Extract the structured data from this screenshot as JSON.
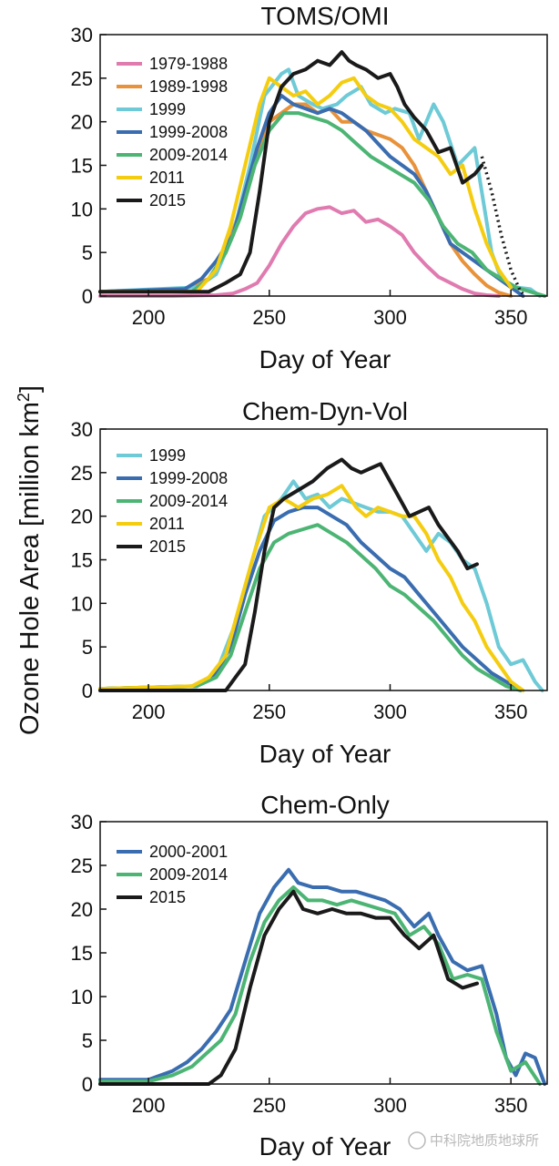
{
  "ylabel": "Ozone Hole Area [million km",
  "ylabel_sup": "2",
  "ylabel_end": "]",
  "watermark": "中科院地质地球所",
  "chart_data": [
    {
      "type": "line",
      "title": "TOMS/OMI",
      "xlabel": "Day of Year",
      "xlim": [
        180,
        365
      ],
      "ylim": [
        0,
        30
      ],
      "xticks": [
        200,
        250,
        300,
        350
      ],
      "yticks": [
        0,
        5,
        10,
        15,
        20,
        25,
        30
      ],
      "series": [
        {
          "name": "1979-1988",
          "color": "#e07bb0",
          "x": [
            180,
            210,
            228,
            235,
            240,
            245,
            250,
            255,
            260,
            265,
            270,
            275,
            280,
            285,
            290,
            295,
            300,
            305,
            310,
            315,
            320,
            325,
            330,
            335,
            340,
            345
          ],
          "y": [
            0,
            0,
            0.1,
            0.3,
            0.8,
            1.5,
            3.5,
            6,
            8,
            9.5,
            10,
            10.2,
            9.5,
            9.8,
            8.5,
            8.8,
            8,
            7,
            5,
            3.5,
            2.2,
            1.5,
            0.8,
            0.3,
            0.1,
            0
          ]
        },
        {
          "name": "1989-1998",
          "color": "#e8923a",
          "x": [
            180,
            215,
            225,
            232,
            238,
            245,
            250,
            255,
            260,
            265,
            270,
            275,
            280,
            285,
            290,
            295,
            300,
            305,
            310,
            315,
            320,
            325,
            330,
            335,
            340,
            345,
            350
          ],
          "y": [
            0.5,
            0.8,
            2,
            5,
            10,
            16,
            20,
            21,
            22,
            22,
            21,
            21.5,
            20,
            20,
            19,
            18.5,
            18,
            17,
            15,
            12,
            9,
            6,
            4,
            2.5,
            1.2,
            0.4,
            0
          ]
        },
        {
          "name": "1999",
          "color": "#6dcad6",
          "x": [
            180,
            220,
            228,
            235,
            242,
            248,
            255,
            258,
            262,
            268,
            272,
            278,
            282,
            288,
            292,
            298,
            302,
            308,
            312,
            318,
            322,
            328,
            335,
            342,
            346,
            352,
            358,
            362
          ],
          "y": [
            0.5,
            1,
            2.5,
            7,
            15,
            23,
            25.5,
            26,
            23,
            22,
            21.5,
            22,
            23,
            24,
            22,
            21,
            21.5,
            21,
            18,
            22,
            20,
            15,
            17,
            5,
            2,
            1,
            0.8,
            0
          ]
        },
        {
          "name": "1999-2008",
          "color": "#3a6db0",
          "x": [
            180,
            215,
            222,
            228,
            235,
            240,
            245,
            250,
            255,
            260,
            265,
            270,
            275,
            280,
            285,
            290,
            295,
            300,
            305,
            310,
            315,
            320,
            325,
            330,
            335,
            340,
            345,
            350,
            355
          ],
          "y": [
            0.5,
            0.8,
            2,
            4,
            7,
            12,
            17,
            21,
            23,
            22,
            21.5,
            21,
            21.5,
            21,
            20,
            19,
            17.5,
            16,
            15,
            14,
            12,
            9,
            6,
            5,
            4,
            3,
            2,
            1,
            0
          ]
        },
        {
          "name": "2009-2014",
          "color": "#4cb574",
          "x": [
            180,
            218,
            225,
            232,
            238,
            244,
            250,
            256,
            262,
            268,
            274,
            280,
            286,
            292,
            298,
            304,
            310,
            316,
            322,
            328,
            334,
            340,
            346,
            352,
            358,
            364
          ],
          "y": [
            0.5,
            0.5,
            2,
            5,
            9,
            15,
            19,
            21,
            21,
            20.5,
            20,
            19,
            17.5,
            16,
            15,
            14,
            13,
            11,
            8,
            6,
            5,
            3,
            2,
            1,
            0.5,
            0
          ]
        },
        {
          "name": "2011",
          "color": "#f5cd10",
          "x": [
            180,
            220,
            228,
            234,
            240,
            246,
            250,
            255,
            260,
            265,
            270,
            275,
            280,
            285,
            290,
            295,
            300,
            305,
            310,
            315,
            320,
            325,
            330,
            335,
            340,
            345,
            350
          ],
          "y": [
            0.5,
            0.5,
            3,
            8,
            15,
            22,
            25,
            24,
            23,
            23.5,
            22,
            23,
            24.5,
            25,
            23,
            22,
            21.5,
            20,
            18,
            17,
            16,
            14,
            15,
            10,
            6,
            3,
            1
          ]
        },
        {
          "name": "2015",
          "color": "#1a1a1a",
          "x": [
            180,
            225,
            232,
            238,
            242,
            246,
            250,
            255,
            260,
            265,
            270,
            275,
            280,
            283,
            286,
            290,
            295,
            300,
            303,
            306,
            310,
            315,
            320,
            325,
            330,
            335,
            338
          ],
          "y": [
            0.5,
            0.5,
            1.5,
            2.5,
            5,
            12,
            20,
            24,
            25.5,
            26,
            27,
            26.5,
            28,
            27,
            26.5,
            26,
            25,
            25.5,
            24,
            22,
            20.5,
            19,
            16.5,
            17,
            13,
            14,
            15
          ]
        }
      ],
      "dotted": {
        "color": "#1a1a1a",
        "x": [
          338,
          342,
          346,
          350,
          354,
          356
        ],
        "y": [
          16,
          12,
          7,
          3,
          0.5,
          0
        ]
      }
    },
    {
      "type": "line",
      "title": "Chem-Dyn-Vol",
      "xlabel": "Day of Year",
      "xlim": [
        180,
        365
      ],
      "ylim": [
        0,
        30
      ],
      "xticks": [
        200,
        250,
        300,
        350
      ],
      "yticks": [
        0,
        5,
        10,
        15,
        20,
        25,
        30
      ],
      "series": [
        {
          "name": "1999",
          "color": "#6dcad6",
          "x": [
            180,
            220,
            228,
            235,
            242,
            248,
            255,
            260,
            265,
            270,
            275,
            280,
            285,
            290,
            295,
            300,
            305,
            310,
            315,
            320,
            325,
            330,
            335,
            340,
            345,
            350,
            355,
            360,
            363
          ],
          "y": [
            0.2,
            0.5,
            2,
            7,
            14,
            20,
            22,
            24,
            22,
            22.5,
            21,
            22,
            21.5,
            21,
            20.5,
            20.5,
            20,
            18,
            16,
            18,
            17,
            15,
            14,
            10,
            5,
            3,
            3.5,
            1,
            0
          ]
        },
        {
          "name": "1999-2008",
          "color": "#3a6db0",
          "x": [
            180,
            220,
            228,
            234,
            240,
            246,
            252,
            258,
            264,
            270,
            276,
            282,
            288,
            294,
            300,
            306,
            312,
            318,
            324,
            330,
            336,
            342,
            348,
            354
          ],
          "y": [
            0.2,
            0.5,
            2,
            5,
            11,
            16,
            19.5,
            20.5,
            21,
            21,
            20,
            19,
            17,
            15.5,
            14,
            13,
            11,
            9,
            7,
            5,
            3.5,
            2,
            1,
            0
          ]
        },
        {
          "name": "2009-2014",
          "color": "#4cb574",
          "x": [
            180,
            220,
            228,
            234,
            240,
            246,
            252,
            258,
            264,
            270,
            276,
            282,
            288,
            294,
            300,
            306,
            312,
            318,
            324,
            330,
            336,
            342,
            348,
            354
          ],
          "y": [
            0.2,
            0.5,
            1.5,
            4,
            9,
            14,
            17,
            18,
            18.5,
            19,
            18,
            17,
            15.5,
            14,
            12,
            11,
            9.5,
            8,
            6,
            4,
            2.5,
            1.5,
            0.5,
            0
          ]
        },
        {
          "name": "2011",
          "color": "#f5cd10",
          "x": [
            180,
            218,
            225,
            232,
            238,
            244,
            250,
            256,
            262,
            268,
            274,
            280,
            286,
            290,
            295,
            300,
            305,
            310,
            315,
            320,
            325,
            330,
            335,
            340,
            345,
            350,
            355
          ],
          "y": [
            0.2,
            0.5,
            1.5,
            4,
            10,
            16,
            21,
            22,
            21,
            22,
            22.5,
            23.5,
            21,
            20,
            21,
            20.5,
            20,
            20,
            18,
            15,
            13,
            10,
            8,
            5,
            3,
            1,
            0
          ]
        },
        {
          "name": "2015",
          "color": "#1a1a1a",
          "x": [
            180,
            232,
            236,
            240,
            244,
            248,
            252,
            256,
            262,
            268,
            274,
            280,
            284,
            288,
            292,
            296,
            300,
            304,
            308,
            312,
            316,
            320,
            324,
            328,
            332,
            336
          ],
          "y": [
            0,
            0,
            1.5,
            3,
            9,
            16,
            21,
            22,
            23,
            24,
            25.5,
            26.5,
            25.5,
            25,
            25.5,
            26,
            24,
            22,
            20,
            20.5,
            21,
            19,
            17.5,
            16,
            14,
            14.5
          ]
        }
      ]
    },
    {
      "type": "line",
      "title": "Chem-Only",
      "xlabel": "Day of Year",
      "xlim": [
        180,
        365
      ],
      "ylim": [
        0,
        30
      ],
      "xticks": [
        200,
        250,
        300,
        350
      ],
      "yticks": [
        0,
        5,
        10,
        15,
        20,
        25,
        30
      ],
      "series": [
        {
          "name": "2000-2001",
          "color": "#3a6db0",
          "x": [
            180,
            200,
            210,
            216,
            222,
            228,
            234,
            240,
            246,
            252,
            258,
            262,
            268,
            274,
            280,
            286,
            292,
            298,
            304,
            310,
            316,
            320,
            326,
            332,
            338,
            344,
            348,
            352,
            356,
            360,
            364
          ],
          "y": [
            0.5,
            0.5,
            1.5,
            2.5,
            4,
            6,
            8.5,
            14,
            19.5,
            22.5,
            24.5,
            23,
            22.5,
            22.5,
            22,
            22,
            21.5,
            21,
            20,
            18,
            19.5,
            17,
            14,
            13,
            13.5,
            8,
            3,
            1,
            3.5,
            3,
            0
          ]
        },
        {
          "name": "2009-2014",
          "color": "#4cb574",
          "x": [
            180,
            200,
            210,
            218,
            224,
            230,
            236,
            242,
            248,
            254,
            260,
            266,
            272,
            278,
            284,
            290,
            296,
            302,
            308,
            314,
            320,
            326,
            332,
            338,
            344,
            350,
            356,
            362
          ],
          "y": [
            0.3,
            0.3,
            1,
            2,
            3.5,
            5,
            8,
            14,
            18.5,
            21,
            22.5,
            21,
            21,
            20.5,
            21,
            20.5,
            20,
            19.5,
            17,
            18,
            16,
            12,
            12.5,
            12,
            6,
            1.5,
            2.5,
            0
          ]
        },
        {
          "name": "2015",
          "color": "#1a1a1a",
          "x": [
            180,
            225,
            230,
            236,
            242,
            248,
            254,
            260,
            264,
            270,
            276,
            282,
            288,
            294,
            300,
            306,
            312,
            318,
            324,
            330,
            336
          ],
          "y": [
            0,
            0,
            1,
            4,
            11,
            17,
            20,
            22,
            20,
            19.5,
            20,
            19.5,
            19.5,
            19,
            19,
            17,
            15.5,
            17,
            12,
            11,
            11.5
          ]
        }
      ]
    }
  ]
}
